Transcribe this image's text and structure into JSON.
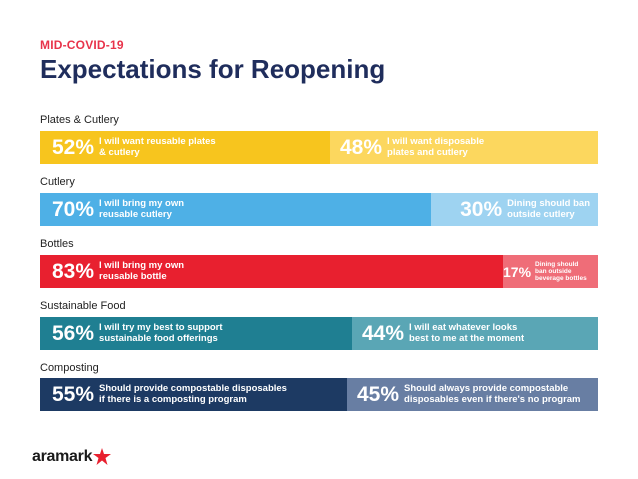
{
  "header": {
    "kicker": "MID-COVID-19",
    "title": "Expectations for Reopening"
  },
  "chart_data": {
    "type": "bar",
    "orientation": "horizontal-stacked-100",
    "title": "Expectations for Reopening",
    "subtitle": "MID-COVID-19",
    "categories": [
      "Plates & Cutlery",
      "Cutlery",
      "Bottles",
      "Sustainable Food",
      "Composting"
    ],
    "rows": [
      {
        "category": "Plates & Cutlery",
        "segments": [
          {
            "value": 52,
            "label": "52%",
            "text": [
              "I will want reusable plates",
              "& cutlery"
            ],
            "color": "#f7c51e"
          },
          {
            "value": 48,
            "label": "48%",
            "text": [
              "I will want disposable",
              "plates and cutlery"
            ],
            "color": "#fcd75e"
          }
        ]
      },
      {
        "category": "Cutlery",
        "segments": [
          {
            "value": 70,
            "label": "70%",
            "text": [
              "I will bring my own",
              "reusable cutlery"
            ],
            "color": "#4eb0e6"
          },
          {
            "value": 30,
            "label": "30%",
            "text": [
              "Dining should ban",
              "outside cutlery"
            ],
            "color": "#9ed3f1"
          }
        ]
      },
      {
        "category": "Bottles",
        "segments": [
          {
            "value": 83,
            "label": "83%",
            "text": [
              "I will bring my own",
              "reusable bottle"
            ],
            "color": "#e8202f"
          },
          {
            "value": 17,
            "label": "17%",
            "text": [
              "Dining should ban outside",
              "beverage bottles"
            ],
            "color": "#ef6d78"
          }
        ]
      },
      {
        "category": "Sustainable Food",
        "segments": [
          {
            "value": 56,
            "label": "56%",
            "text": [
              "I will try my best to support",
              "sustainable food offerings"
            ],
            "color": "#1f7f92"
          },
          {
            "value": 44,
            "label": "44%",
            "text": [
              "I will eat whatever looks",
              "best to me at the moment"
            ],
            "color": "#5aa6b5"
          }
        ]
      },
      {
        "category": "Composting",
        "segments": [
          {
            "value": 55,
            "label": "55%",
            "text": [
              "Should provide compostable disposables",
              "if there is a composting program"
            ],
            "color": "#1d3a63"
          },
          {
            "value": 45,
            "label": "45%",
            "text": [
              "Should always provide compostable",
              "disposables even if there's no program"
            ],
            "color": "#687ea3"
          }
        ]
      }
    ]
  },
  "footer": {
    "logo_text": "aramark"
  }
}
